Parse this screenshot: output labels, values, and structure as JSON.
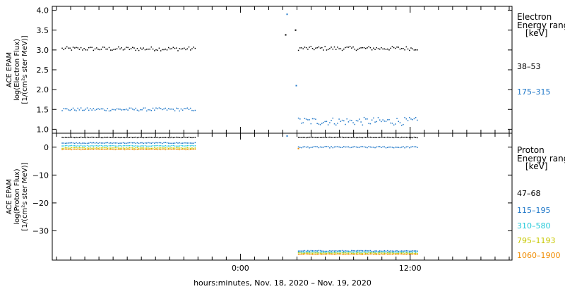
{
  "chart_data": [
    {
      "type": "scatter",
      "ylabel_lines": [
        "ACE EPAM",
        "log(Electron Flux)",
        "[1/(cm²s ster MeV)]"
      ],
      "ylim": [
        0.9,
        4.1
      ],
      "yticks": [
        1.0,
        1.5,
        2.0,
        2.5,
        3.0,
        3.5,
        4.0
      ],
      "ytick_labels": [
        "1.0",
        "1.5",
        "2.0",
        "2.5",
        "3.0",
        "3.5",
        "4.0"
      ],
      "legend_title": [
        "Electron",
        "Energy ranges",
        "[keV]"
      ],
      "series": [
        {
          "name": "38–53",
          "color": "#000000",
          "segments": [
            {
              "x_start": -12.6,
              "x_end": -3.2,
              "base": 3.03,
              "noise": 0.05
            },
            {
              "x_start": 4.1,
              "x_end": 12.5,
              "base": 3.04,
              "noise": 0.05
            }
          ],
          "points": [
            {
              "x": 3.2,
              "y": 3.38
            },
            {
              "x": 3.9,
              "y": 3.5
            }
          ]
        },
        {
          "name": "175–315",
          "color": "#1f77c8",
          "segments": [
            {
              "x_start": -12.6,
              "x_end": -3.2,
              "base": 1.5,
              "noise": 0.04
            },
            {
              "x_start": 4.1,
              "x_end": 12.5,
              "base": 1.2,
              "noise": 0.1
            }
          ],
          "points": [
            {
              "x": 3.3,
              "y": 3.9
            },
            {
              "x": 3.95,
              "y": 2.1
            }
          ]
        }
      ]
    },
    {
      "type": "scatter",
      "ylabel_lines": [
        "ACE EPAM",
        "log(Proton Flux)",
        "[1/(cm²s ster MeV)]"
      ],
      "ylim": [
        -40.5,
        5
      ],
      "yticks": [
        0,
        -10,
        -20,
        -30
      ],
      "ytick_labels": [
        "0",
        "−10",
        "−20",
        "−30"
      ],
      "legend_title": [
        "Proton",
        "Energy ranges",
        "[keV]"
      ],
      "series": [
        {
          "name": "47–68",
          "color": "#000000",
          "segments": [
            {
              "x_start": -12.6,
              "x_end": -3.2,
              "base": 3.5,
              "noise": 0.1
            },
            {
              "x_start": 4.1,
              "x_end": 12.5,
              "base": 3.5,
              "noise": 0.1
            }
          ],
          "points": []
        },
        {
          "name": "115–195",
          "color": "#1f77c8",
          "segments": [
            {
              "x_start": -12.6,
              "x_end": -3.2,
              "base": 1.5,
              "noise": 0.15
            },
            {
              "x_start": 4.1,
              "x_end": 12.5,
              "base": 0.0,
              "noise": 0.25
            },
            {
              "x_start": 4.1,
              "x_end": 12.5,
              "base": -37.2,
              "noise": 0.15
            }
          ],
          "points": [
            {
              "x": 3.3,
              "y": 4.0
            }
          ]
        },
        {
          "name": "310–580",
          "color": "#22c8d8",
          "segments": [
            {
              "x_start": -12.6,
              "x_end": -3.2,
              "base": 0.5,
              "noise": 0.12
            },
            {
              "x_start": 4.1,
              "x_end": 12.5,
              "base": -37.6,
              "noise": 0.12
            }
          ],
          "points": []
        },
        {
          "name": "795–1193",
          "color": "#c8c800",
          "segments": [
            {
              "x_start": -12.6,
              "x_end": -3.2,
              "base": -0.3,
              "noise": 0.12
            },
            {
              "x_start": 4.1,
              "x_end": 12.5,
              "base": -38.0,
              "noise": 0.12
            }
          ],
          "points": []
        },
        {
          "name": "1060–1900",
          "color": "#f08c00",
          "segments": [
            {
              "x_start": -12.6,
              "x_end": -3.2,
              "base": -0.8,
              "noise": 0.12
            },
            {
              "x_start": 4.1,
              "x_end": 12.5,
              "base": -38.4,
              "noise": 0.12
            }
          ],
          "points": [
            {
              "x": 4.1,
              "y": -0.5
            }
          ]
        }
      ]
    }
  ],
  "xaxis": {
    "xlim": [
      -13.3,
      19.2
    ],
    "major_ticks": [
      0,
      12
    ],
    "major_labels": [
      "0:00",
      "12:00"
    ],
    "minor_step": 1,
    "label": "hours:minutes, Nov. 18, 2020 – Nov. 19, 2020"
  }
}
